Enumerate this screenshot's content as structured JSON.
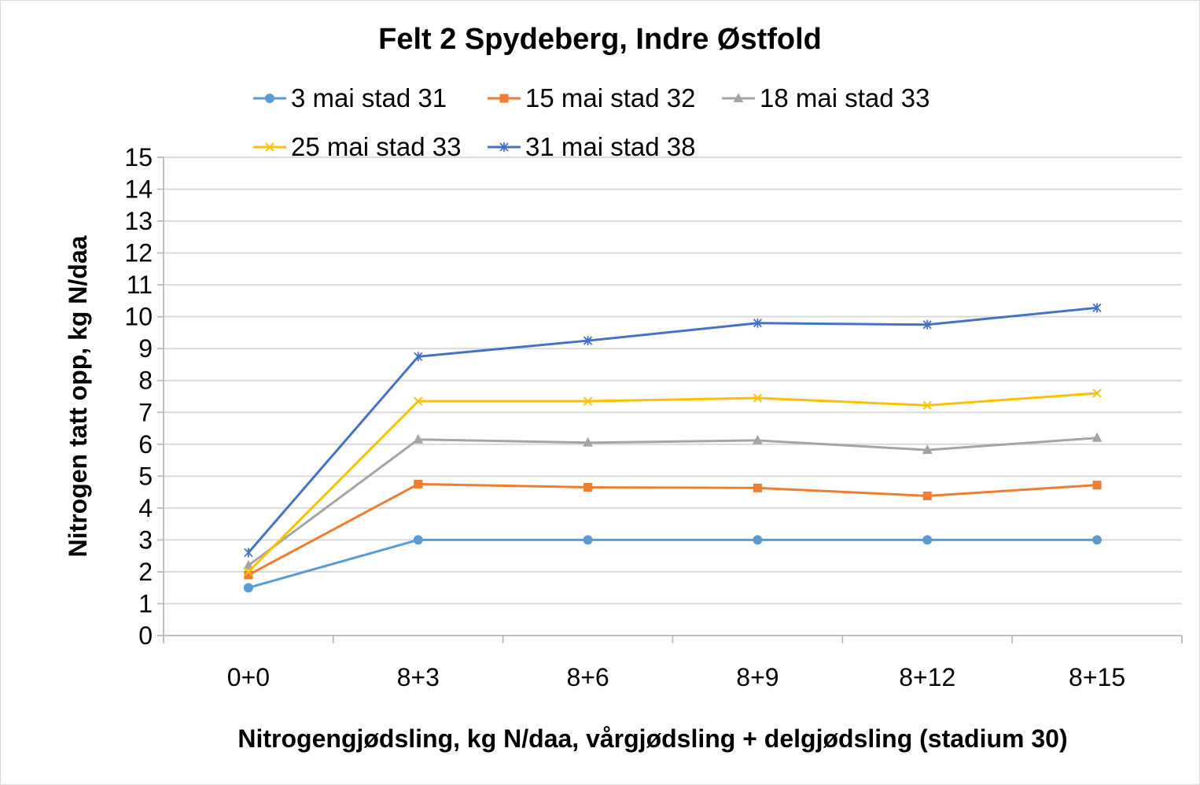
{
  "chart_data": {
    "type": "line",
    "title": "Felt 2 Spydeberg, Indre Østfold",
    "xlabel": "Nitrogengjødsling, kg N/daa, vårgjødsling + delgjødsling (stadium 30)",
    "ylabel": "Nitrogen tatt opp, kg N/daa",
    "categories": [
      "0+0",
      "8+3",
      "8+6",
      "8+9",
      "8+12",
      "8+15"
    ],
    "ylim": [
      0,
      15
    ],
    "yticks": [
      0,
      1,
      2,
      3,
      4,
      5,
      6,
      7,
      8,
      9,
      10,
      11,
      12,
      13,
      14,
      15
    ],
    "grid": true,
    "legend_position": "top",
    "series": [
      {
        "name": "3 mai stad 31",
        "color": "#5b9bd5",
        "marker": "circle",
        "values": [
          1.5,
          3.0,
          3.0,
          3.0,
          3.0,
          3.0
        ]
      },
      {
        "name": "15 mai stad 32",
        "color": "#ed7d31",
        "marker": "square",
        "values": [
          1.9,
          4.75,
          4.65,
          4.63,
          4.38,
          4.72
        ]
      },
      {
        "name": "18 mai stad 33",
        "color": "#a5a5a5",
        "marker": "triangle",
        "values": [
          2.2,
          6.15,
          6.05,
          6.12,
          5.82,
          6.2
        ]
      },
      {
        "name": "25 mai stad 33",
        "color": "#ffc000",
        "marker": "x",
        "values": [
          2.0,
          7.35,
          7.35,
          7.45,
          7.22,
          7.6
        ]
      },
      {
        "name": "31 mai stad 38",
        "color": "#4472c4",
        "marker": "star",
        "values": [
          2.6,
          8.75,
          9.25,
          9.8,
          9.75,
          10.28
        ]
      }
    ]
  }
}
